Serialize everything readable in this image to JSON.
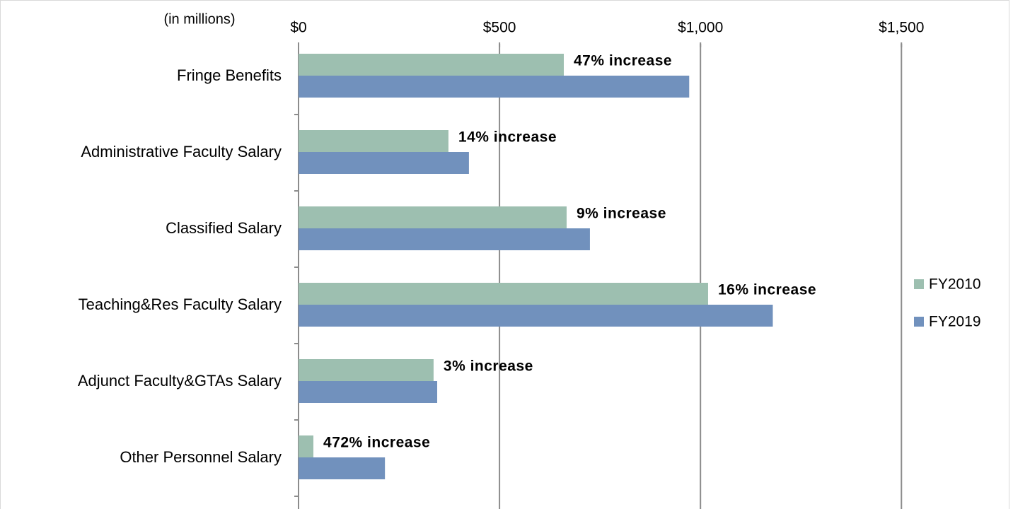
{
  "chart_data": {
    "type": "barh",
    "axis_label": "(in millions)",
    "categories": [
      "Fringe Benefits",
      "Administrative Faculty Salary",
      "Classified Salary",
      "Teaching&Res Faculty Salary",
      "Adjunct Faculty&GTAs Salary",
      "Other Personnel Salary"
    ],
    "series": [
      {
        "name": "FY2010",
        "color": "#9dbfb0",
        "values": [
          660,
          373,
          667,
          1019,
          336,
          37
        ]
      },
      {
        "name": "FY2019",
        "color": "#7191bd",
        "values": [
          972,
          424,
          725,
          1180,
          345,
          215
        ]
      }
    ],
    "annotations": [
      "47% increase",
      "14% increase",
      "9% increase",
      "16% increase",
      "3% increase",
      "472% increase"
    ],
    "xlim": [
      0,
      1760
    ],
    "xticks": [
      {
        "value": 0,
        "label": "$0"
      },
      {
        "value": 500,
        "label": "$500"
      },
      {
        "value": 1000,
        "label": "$1,000"
      },
      {
        "value": 1500,
        "label": "$1,500"
      }
    ],
    "grid": true,
    "legend": "right"
  }
}
